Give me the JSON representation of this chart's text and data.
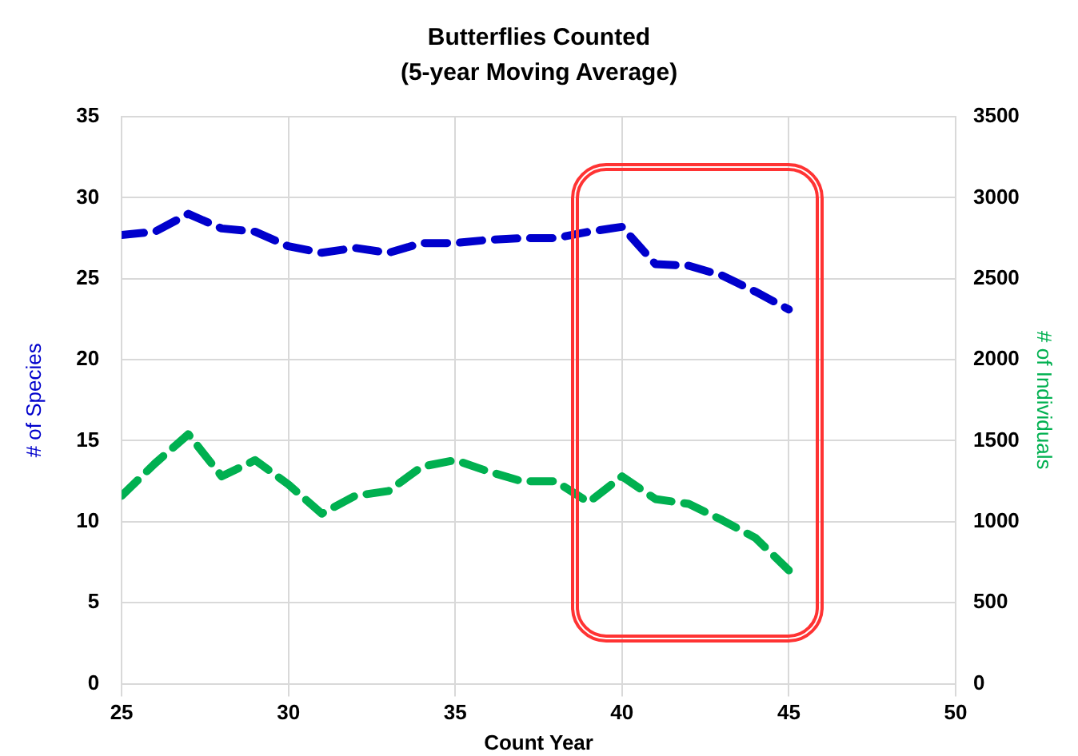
{
  "chart_data": {
    "type": "line",
    "title": "Butterflies Counted",
    "subtitle": "(5-year Moving Average)",
    "xlabel": "Count Year",
    "ylabel": "# of Species",
    "y2label": "# of Individuals",
    "x": [
      25,
      26,
      27,
      28,
      29,
      30,
      31,
      32,
      33,
      34,
      35,
      36,
      37,
      38,
      39,
      40,
      41,
      42,
      43,
      44,
      45
    ],
    "series": [
      {
        "color": "#0000cc",
        "values": [
          27.7,
          27.9,
          29.0,
          28.1,
          27.9,
          27.0,
          26.6,
          26.9,
          26.6,
          27.2,
          27.2,
          27.4,
          27.5,
          27.5,
          27.9,
          28.2,
          25.9,
          25.8,
          25.2,
          24.2,
          23.1
        ]
      },
      {
        "color": "#00b050",
        "axis": "y2",
        "values": [
          1160,
          1360,
          1540,
          1280,
          1380,
          1230,
          1050,
          1160,
          1190,
          1340,
          1380,
          1310,
          1250,
          1250,
          1120,
          1280,
          1140,
          1110,
          1010,
          900,
          700
        ]
      }
    ],
    "xlim": [
      25,
      50
    ],
    "xticks": [
      25,
      30,
      35,
      40,
      45,
      50
    ],
    "ylim": [
      0,
      35
    ],
    "yticks": [
      0,
      5,
      10,
      15,
      20,
      25,
      30,
      35
    ],
    "y2lim": [
      0,
      3500
    ],
    "y2ticks": [
      0,
      500,
      1000,
      1500,
      2000,
      2500,
      3000,
      3500
    ],
    "grid": true,
    "legend": false,
    "marker": "none",
    "line_style": "dashed"
  }
}
